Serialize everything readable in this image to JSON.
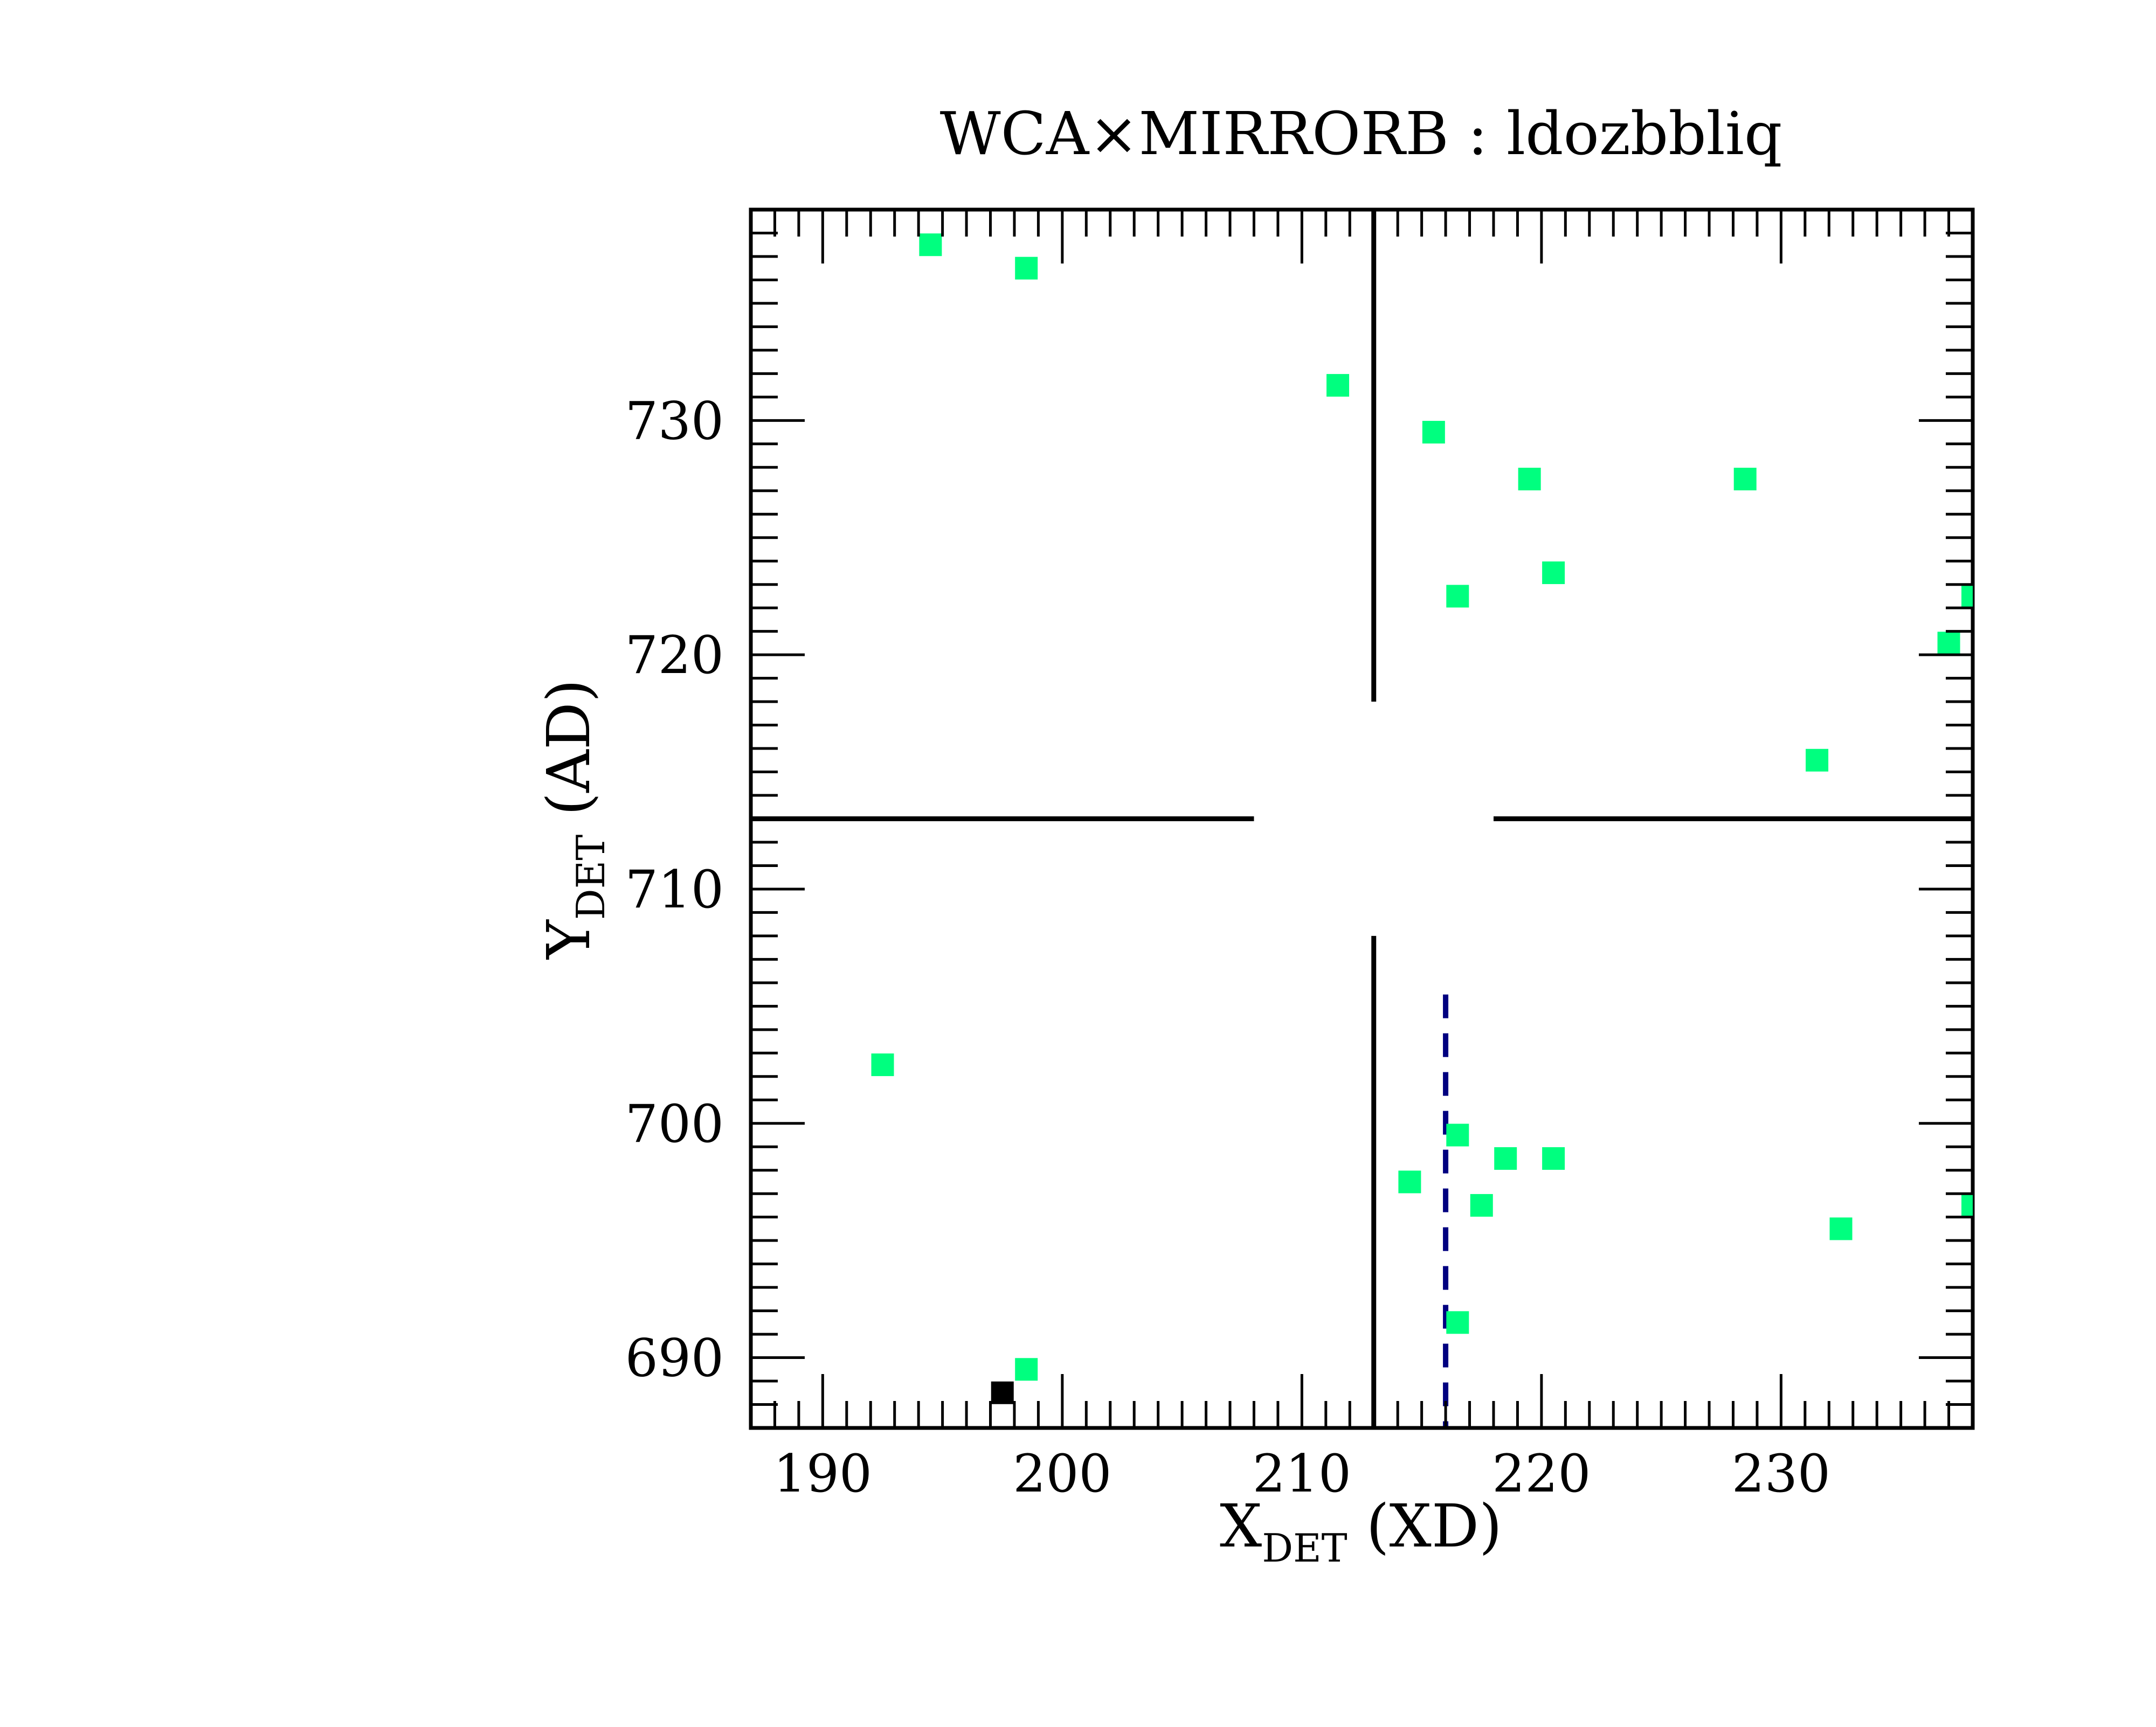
{
  "chart_data": {
    "type": "scatter",
    "title": "WCA×MIRRORB : ldozbbliq",
    "xlabel": {
      "main": "X",
      "sub": "DET",
      "suffix": " (XD)"
    },
    "ylabel": {
      "main": "Y",
      "sub": "DET",
      "suffix": " (AD)"
    },
    "xlim": [
      187,
      238
    ],
    "ylim": [
      687,
      739
    ],
    "x_ticks": [
      190,
      200,
      210,
      220,
      230
    ],
    "y_ticks": [
      690,
      700,
      710,
      720,
      730
    ],
    "grid": false,
    "series": [
      {
        "marker_color": "#00ff7f",
        "points": [
          {
            "x": 194.5,
            "y": 737.5
          },
          {
            "x": 198.5,
            "y": 736.5
          },
          {
            "x": 211.5,
            "y": 731.5
          },
          {
            "x": 215.5,
            "y": 729.5
          },
          {
            "x": 219.5,
            "y": 727.5
          },
          {
            "x": 228.5,
            "y": 727.5
          },
          {
            "x": 220.5,
            "y": 723.5
          },
          {
            "x": 216.5,
            "y": 722.5
          },
          {
            "x": 238.0,
            "y": 722.5
          },
          {
            "x": 237.0,
            "y": 720.5
          },
          {
            "x": 231.5,
            "y": 715.5
          },
          {
            "x": 192.5,
            "y": 702.5
          },
          {
            "x": 216.5,
            "y": 699.5
          },
          {
            "x": 218.5,
            "y": 698.5
          },
          {
            "x": 220.5,
            "y": 698.5
          },
          {
            "x": 214.5,
            "y": 697.5
          },
          {
            "x": 217.5,
            "y": 696.5
          },
          {
            "x": 238.0,
            "y": 696.5
          },
          {
            "x": 232.5,
            "y": 695.5
          },
          {
            "x": 216.5,
            "y": 691.5
          },
          {
            "x": 198.5,
            "y": 689.5
          }
        ]
      },
      {
        "marker_color": "#000000",
        "points": [
          {
            "x": 197.5,
            "y": 688.5
          }
        ]
      }
    ],
    "crosshair": {
      "x": 213,
      "y": 713,
      "gap_x": [
        208,
        218
      ],
      "gap_y": [
        708,
        718
      ],
      "color": "#000000"
    },
    "reference_line": {
      "x": 216,
      "y_range": [
        687,
        705.5
      ],
      "style": "dashed",
      "color": "#000080"
    }
  }
}
